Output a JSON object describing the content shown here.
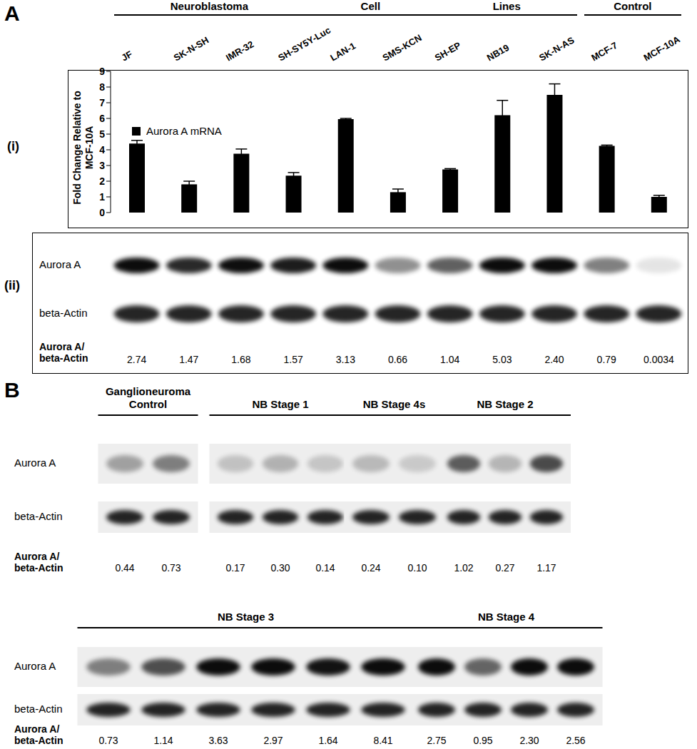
{
  "panel_labels": [
    "A",
    "B"
  ],
  "chart_data": {
    "type": "bar",
    "sublabel": "(i)",
    "category_groups": [
      {
        "label": "Neuroblastoma Cell Lines",
        "count": 9
      },
      {
        "label": "Control",
        "count": 2
      }
    ],
    "categories": [
      "JF",
      "SK-N-SH",
      "IMR-32",
      "SH-SY5Y-Luc",
      "LAN-1",
      "SMS-KCN",
      "SH-EP",
      "NB19",
      "SK-N-AS",
      "MCF-7",
      "MCF-10A"
    ],
    "series": [
      {
        "name": "Aurora A mRNA",
        "color": "#000000",
        "values": [
          4.4,
          1.8,
          3.75,
          2.35,
          5.95,
          1.3,
          2.75,
          6.2,
          7.5,
          4.25,
          1.0
        ],
        "errors": [
          0.2,
          0.2,
          0.3,
          0.2,
          0.05,
          0.2,
          0.05,
          0.95,
          0.7,
          0.05,
          0.1
        ]
      }
    ],
    "ylabel": "Fold Change Relative to MCF-10A",
    "ylim": [
      0,
      9
    ],
    "yticks": [
      0,
      1,
      2,
      3,
      4,
      5,
      6,
      7,
      8,
      9
    ],
    "legend": "upper left",
    "grid": false
  },
  "blot_a": {
    "sublabel": "(ii)",
    "rows": [
      "Aurora A",
      "beta-Actin"
    ],
    "ratio_label": "Aurora A/ beta-Actin",
    "ratios": [
      "2.74",
      "1.47",
      "1.68",
      "1.57",
      "3.13",
      "0.66",
      "1.04",
      "5.03",
      "2.40",
      "0.79",
      "0.0034"
    ]
  },
  "blot_b": {
    "rows": [
      "Aurora A",
      "beta-Actin"
    ],
    "ratio_label": "Aurora A/ beta-Actin",
    "group_rows": [
      [
        {
          "name": "Ganglioneuroma Control",
          "ratios": [
            "0.44",
            "0.73"
          ]
        },
        {
          "name": "NB Stage 1",
          "ratios": [
            "0.17",
            "0.30",
            "0.14"
          ]
        },
        {
          "name": "NB Stage 4s",
          "ratios": [
            "0.24",
            "0.10"
          ]
        },
        {
          "name": "NB Stage 2",
          "ratios": [
            "1.02",
            "0.27",
            "1.17"
          ]
        }
      ],
      [
        {
          "name": "NB Stage 3",
          "ratios": [
            "0.73",
            "1.14",
            "3.63",
            "2.97",
            "1.64",
            "8.41"
          ]
        },
        {
          "name": "NB Stage 4",
          "ratios": [
            "2.75",
            "0.95",
            "2.30",
            "2.56"
          ]
        }
      ]
    ]
  }
}
